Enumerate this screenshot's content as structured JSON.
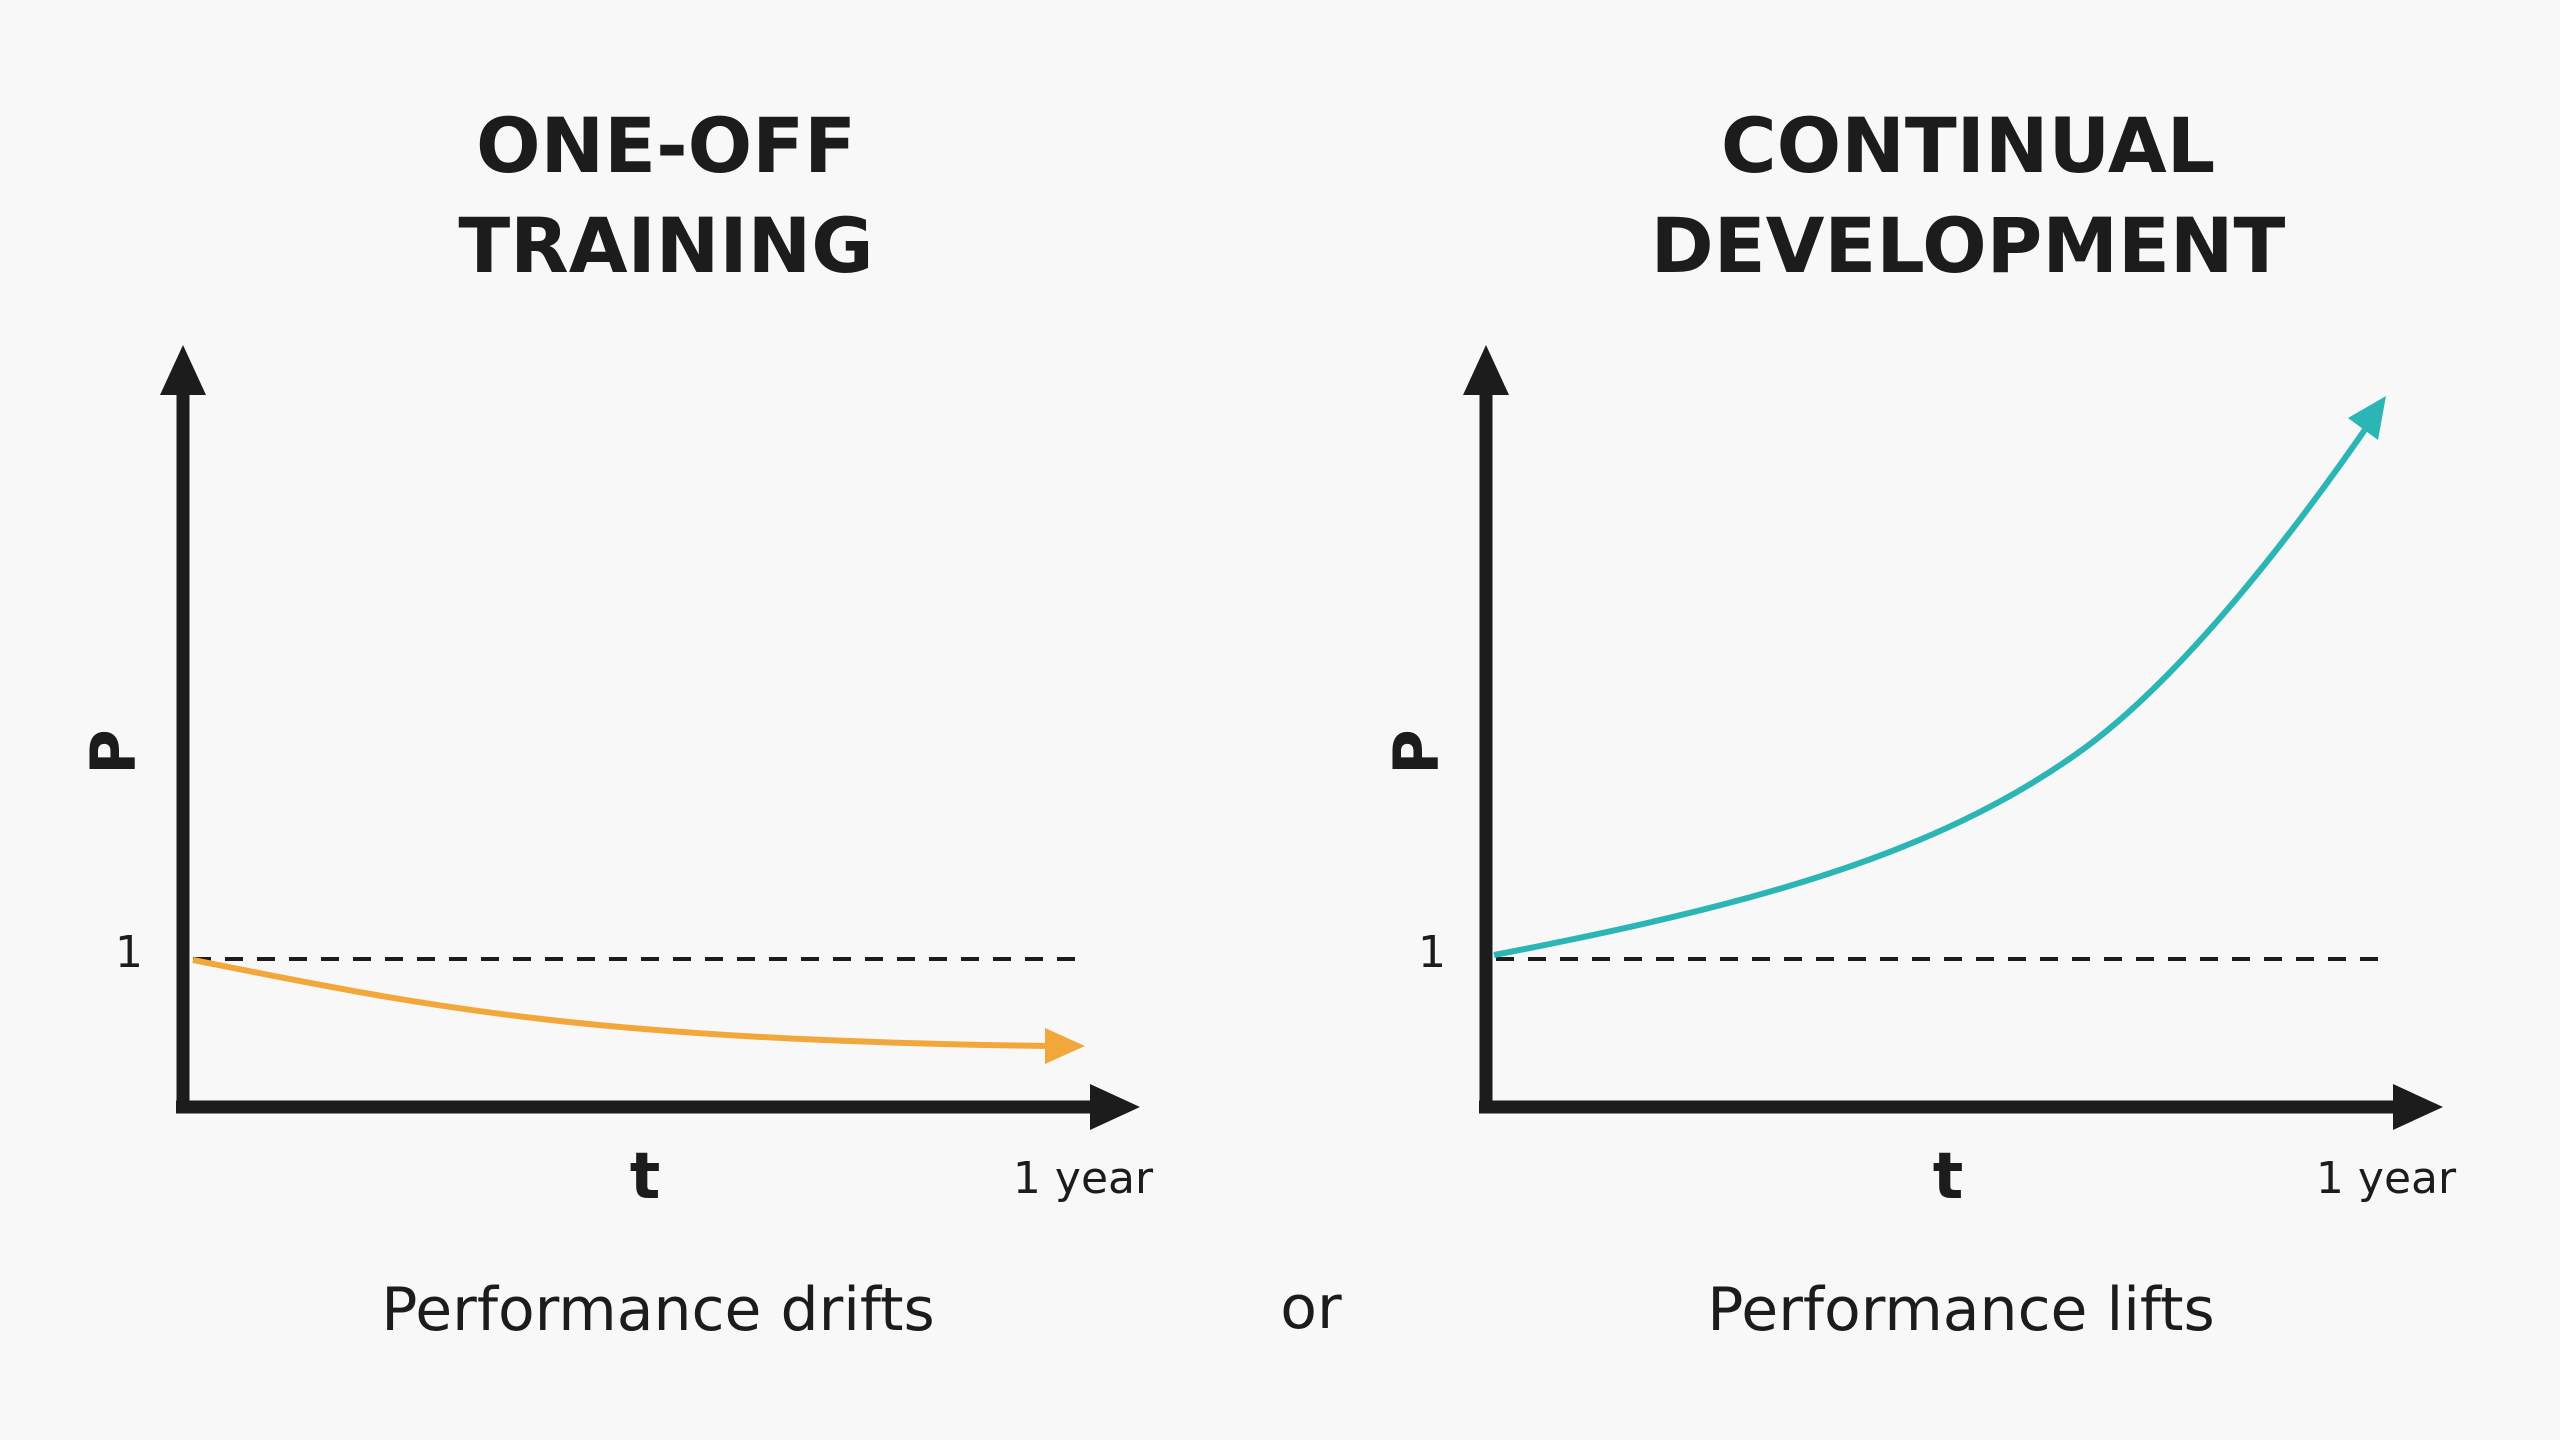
{
  "panels": [
    {
      "title": [
        "ONE-OFF",
        "TRAINING"
      ],
      "y_label": "P",
      "baseline_label": "1",
      "x_label": "t",
      "x_end_label": "1 year",
      "caption": "Performance drifts"
    },
    {
      "title": [
        "CONTINUAL",
        "DEVELOPMENT"
      ],
      "y_label": "P",
      "baseline_label": "1",
      "x_label": "t",
      "x_end_label": "1 year",
      "caption": "Performance lifts"
    }
  ],
  "separator": "or"
}
